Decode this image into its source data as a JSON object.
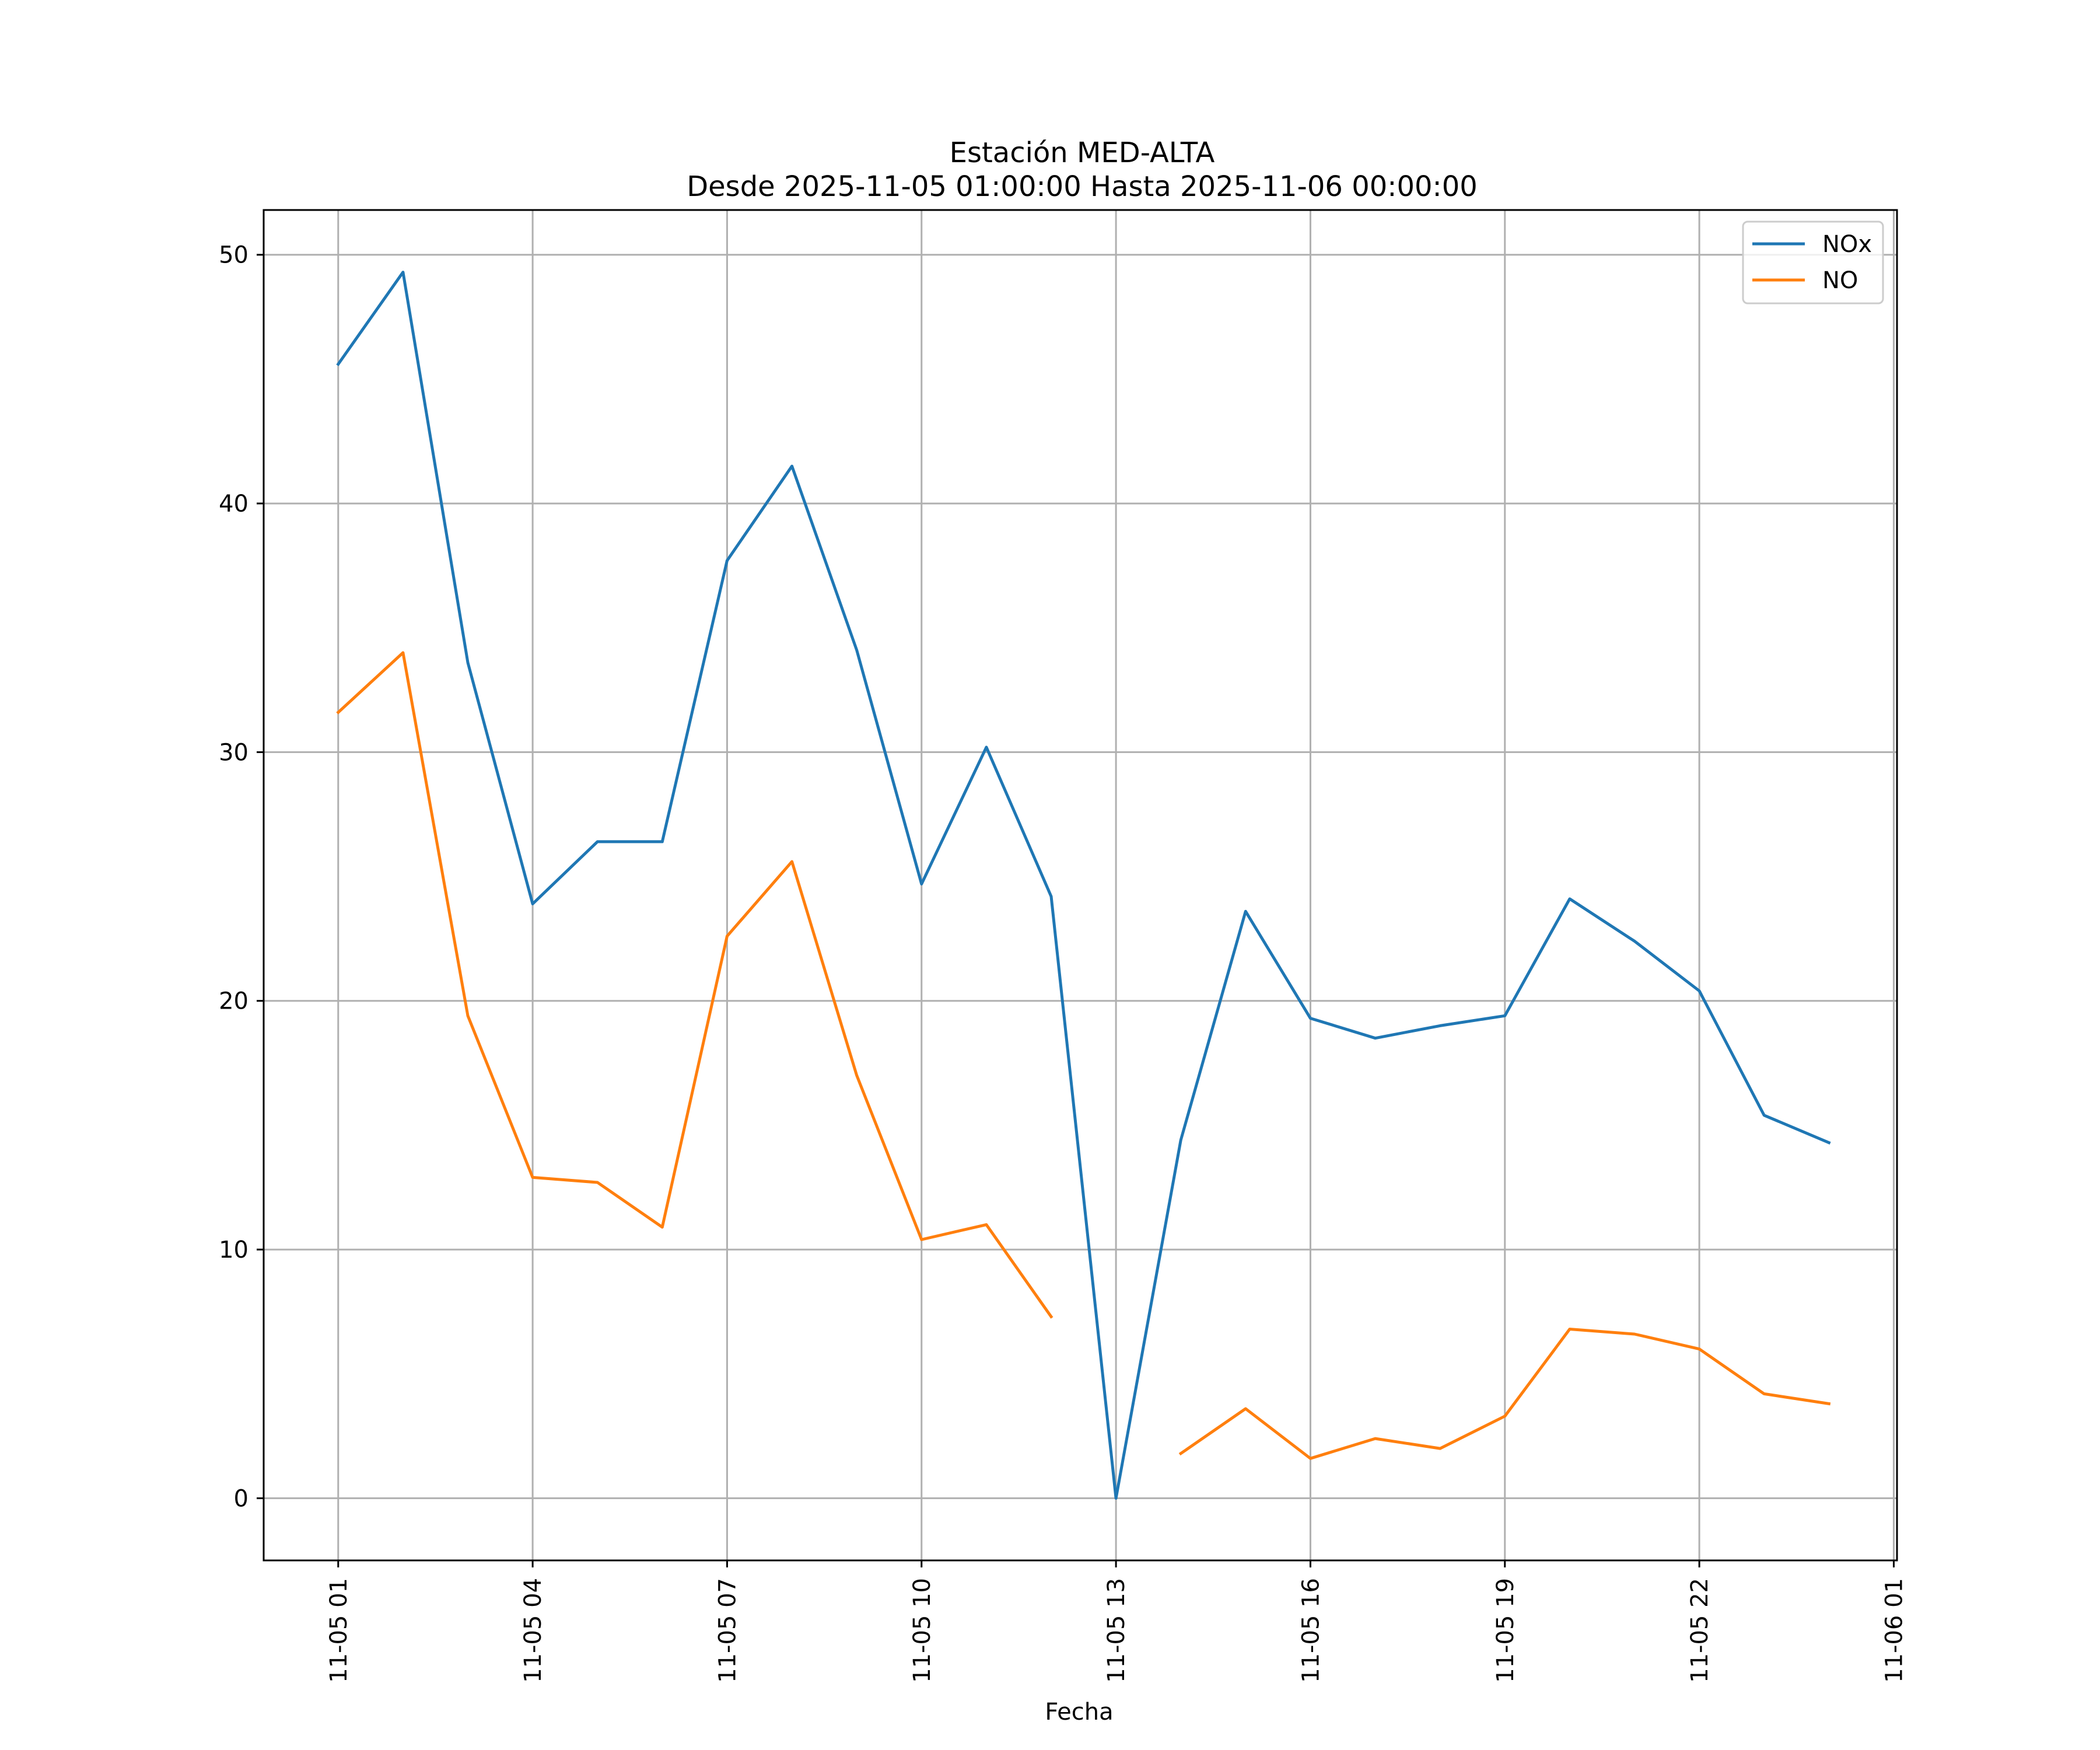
{
  "chart_data": {
    "type": "line",
    "title": "Estación MED-ALTA",
    "subtitle": "Desde 2025-11-05 01:00:00 Hasta 2025-11-06 00:00:00",
    "xlabel": "Fecha",
    "ylabel": "",
    "x": [
      "2025-11-05 01:00",
      "2025-11-05 02:00",
      "2025-11-05 03:00",
      "2025-11-05 04:00",
      "2025-11-05 05:00",
      "2025-11-05 06:00",
      "2025-11-05 07:00",
      "2025-11-05 08:00",
      "2025-11-05 09:00",
      "2025-11-05 10:00",
      "2025-11-05 11:00",
      "2025-11-05 12:00",
      "2025-11-05 13:00",
      "2025-11-05 14:00",
      "2025-11-05 15:00",
      "2025-11-05 16:00",
      "2025-11-05 17:00",
      "2025-11-05 18:00",
      "2025-11-05 19:00",
      "2025-11-05 20:00",
      "2025-11-05 21:00",
      "2025-11-05 22:00",
      "2025-11-05 23:00",
      "2025-11-06 00:00"
    ],
    "series": [
      {
        "name": "NOx",
        "color": "#1f77b4",
        "values": [
          45.6,
          49.3,
          33.6,
          23.9,
          26.4,
          26.4,
          37.7,
          41.5,
          34.1,
          24.7,
          30.2,
          24.2,
          0.0,
          14.4,
          23.6,
          19.3,
          18.5,
          19.0,
          19.4,
          24.1,
          22.4,
          20.4,
          15.4,
          14.3
        ]
      },
      {
        "name": "NO",
        "color": "#ff7f0e",
        "values": [
          31.6,
          34.0,
          19.4,
          12.9,
          12.7,
          10.9,
          22.6,
          25.6,
          17.0,
          10.4,
          11.0,
          7.3,
          null,
          1.8,
          3.6,
          1.6,
          2.4,
          2.0,
          3.3,
          6.8,
          6.6,
          6.0,
          4.2,
          3.8
        ]
      }
    ],
    "x_ticks": [
      {
        "label": "11-05 01",
        "hour": 0
      },
      {
        "label": "11-05 04",
        "hour": 3
      },
      {
        "label": "11-05 07",
        "hour": 6
      },
      {
        "label": "11-05 10",
        "hour": 9
      },
      {
        "label": "11-05 13",
        "hour": 12
      },
      {
        "label": "11-05 16",
        "hour": 15
      },
      {
        "label": "11-05 19",
        "hour": 18
      },
      {
        "label": "11-05 22",
        "hour": 21
      },
      {
        "label": "11-06 01",
        "hour": 24
      }
    ],
    "y_ticks": [
      0,
      10,
      20,
      30,
      40,
      50
    ],
    "ylim": [
      -2.5,
      51.8
    ],
    "xlim_hours": [
      -1.15,
      24.05
    ],
    "grid": true,
    "legend": "top-right",
    "grid_color": "#b0b0b0",
    "axis_color": "#000000"
  }
}
